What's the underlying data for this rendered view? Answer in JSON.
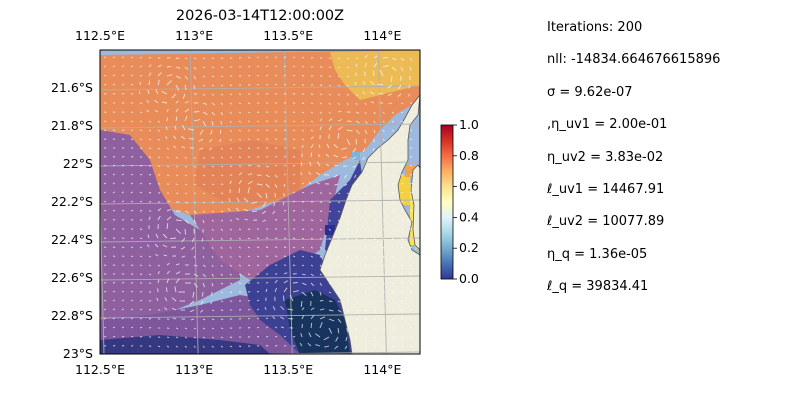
{
  "title": "2026-03-14T12:00:00Z",
  "map": {
    "lon_range": [
      112.5,
      114.2
    ],
    "lat_range": [
      -23.0,
      -21.4
    ],
    "lon_ticks": [
      {
        "value": 112.5,
        "label": "112.5°E"
      },
      {
        "value": 113.0,
        "label": "113°E"
      },
      {
        "value": 113.5,
        "label": "113.5°E"
      },
      {
        "value": 114.0,
        "label": "114°E"
      }
    ],
    "lat_ticks": [
      {
        "value": -21.6,
        "label": "21.6°S"
      },
      {
        "value": -21.8,
        "label": "21.8°S"
      },
      {
        "value": -22.0,
        "label": "22°S"
      },
      {
        "value": -22.2,
        "label": "22.2°S"
      },
      {
        "value": -22.4,
        "label": "22.4°S"
      },
      {
        "value": -22.6,
        "label": "22.6°S"
      },
      {
        "value": -22.8,
        "label": "22.8°S"
      },
      {
        "value": -23.0,
        "label": "23°S"
      }
    ],
    "colors": {
      "ocean": "#9db9dd",
      "land": "#efedde",
      "grid": "#b0b0b0",
      "coast": "#555555"
    }
  },
  "colorbar": {
    "range": [
      0,
      1
    ],
    "ticks": [
      "0.0",
      "0.2",
      "0.4",
      "0.6",
      "0.8",
      "1.0"
    ],
    "colormap": [
      "#313695",
      "#4575b4",
      "#74add1",
      "#abd9e9",
      "#e0f3f8",
      "#ffffbf",
      "#fee090",
      "#fdae61",
      "#f46d43",
      "#d73027",
      "#a50026"
    ]
  },
  "params": [
    "Iterations: 200",
    "nll: -14834.664676615896",
    "σ = 9.62e-07",
    ",η_uv1 = 2.00e-01",
    "η_uv2 = 3.83e-02",
    "ℓ_uv1 = 14467.91",
    "ℓ_uv2 = 10077.89",
    "η_q = 1.36e-05",
    "ℓ_q = 39834.41"
  ]
}
